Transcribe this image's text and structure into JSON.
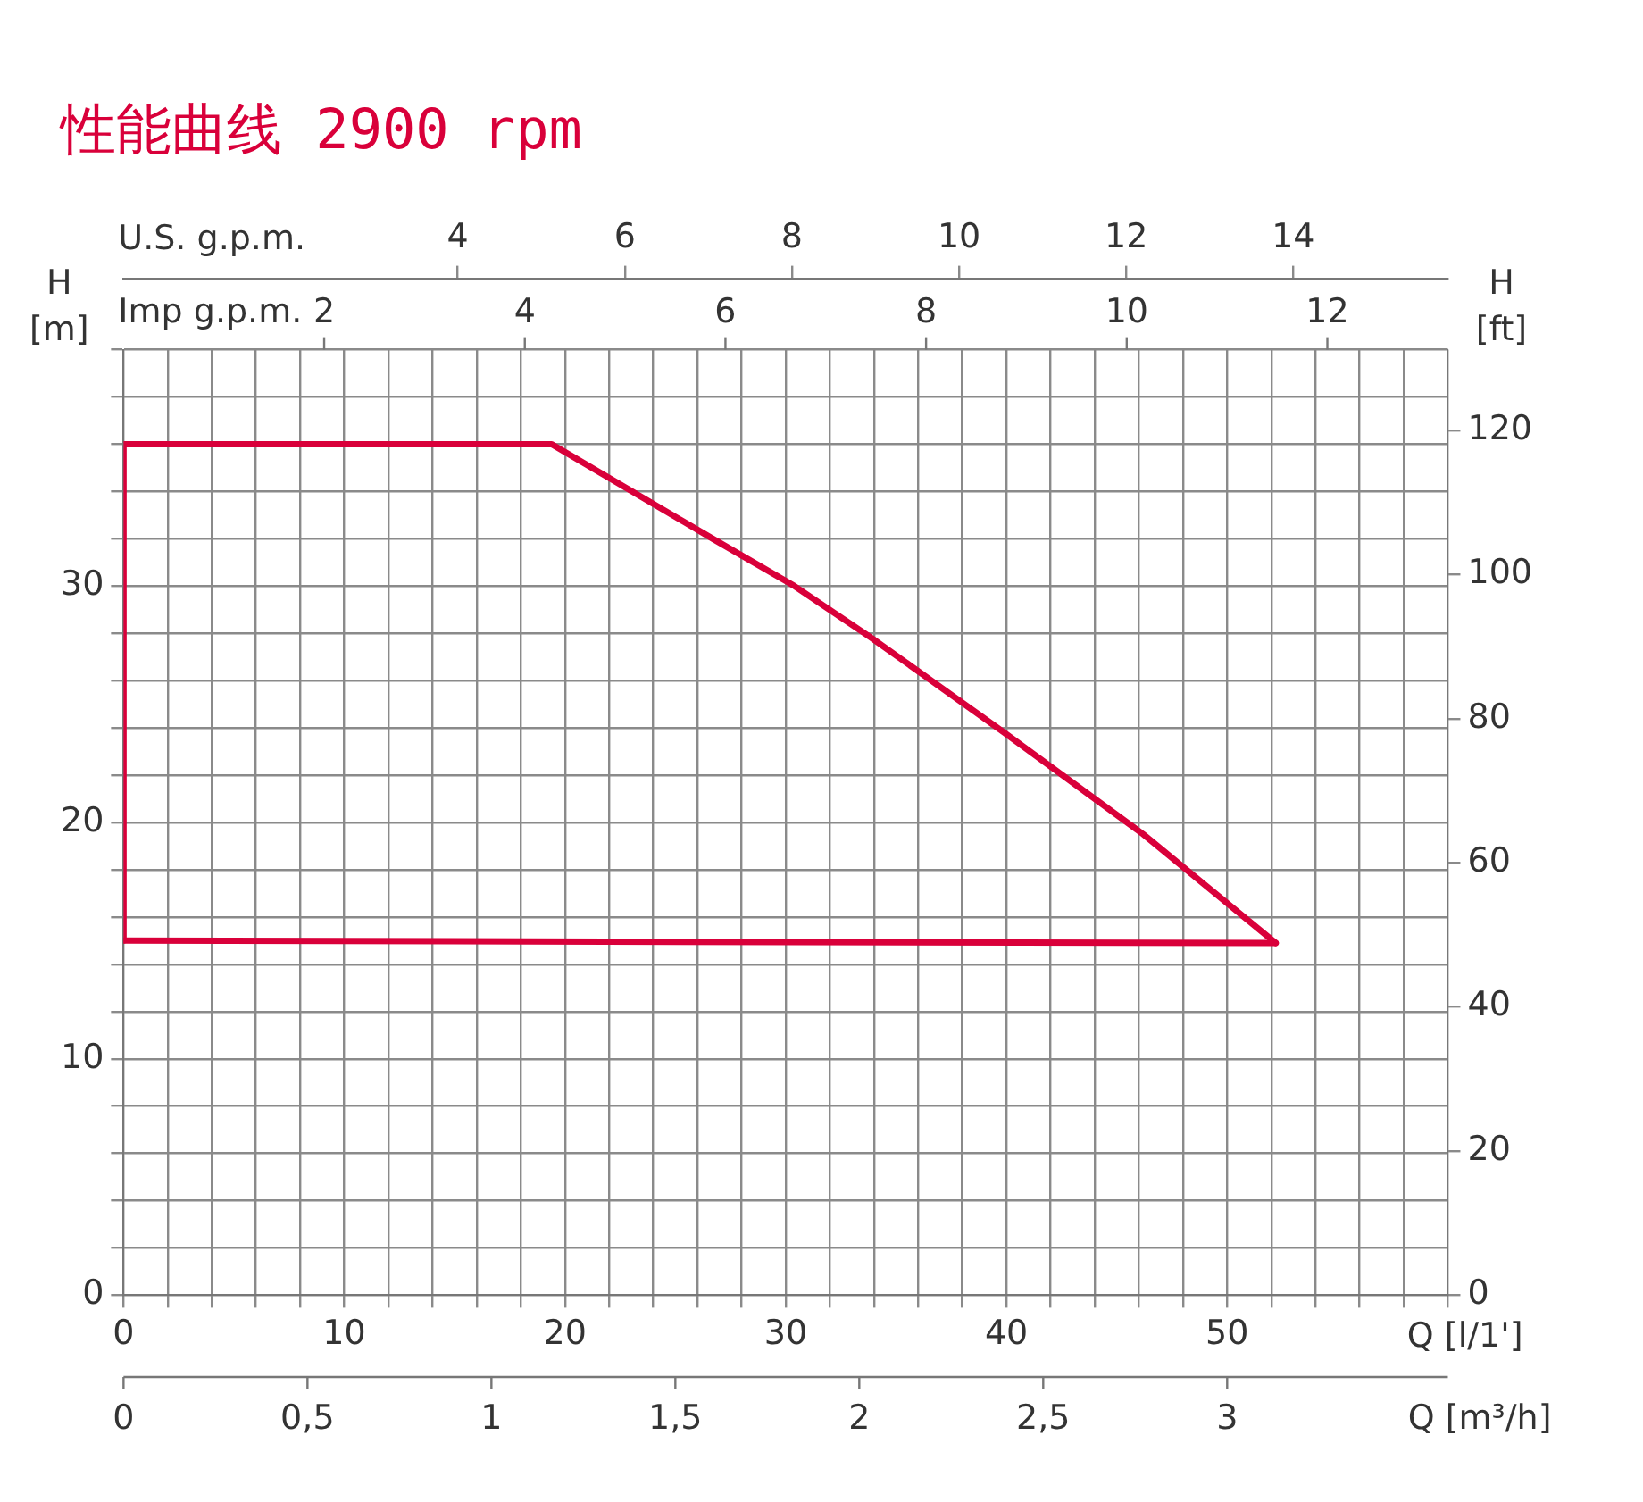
{
  "chart_data": {
    "type": "line",
    "title": "性能曲线 2900 rpm",
    "xlabel": "Q [l/1']",
    "ylabel": "H [m]",
    "y2label": "H [ft]",
    "x2label": "U.S. g.p.m.",
    "xlim": [
      0,
      60
    ],
    "xticks": [
      0,
      {
        "value": 2,
        "label": null
      },
      {
        "value": 4,
        "label": null
      },
      {
        "value": 6,
        "label": null
      },
      {
        "value": 8,
        "label": null
      },
      10,
      {
        "value": 12,
        "label": null
      },
      {
        "value": 14,
        "label": null
      },
      {
        "value": 16,
        "label": null
      },
      {
        "value": 18,
        "label": null
      },
      20,
      {
        "value": 22,
        "label": null
      },
      {
        "value": 24,
        "label": null
      },
      {
        "value": 26,
        "label": null
      },
      {
        "value": 28,
        "label": null
      },
      30,
      {
        "value": 32,
        "label": null
      },
      {
        "value": 34,
        "label": null
      },
      {
        "value": 36,
        "label": null
      },
      {
        "value": 38,
        "label": null
      },
      40,
      {
        "value": 42,
        "label": null
      },
      {
        "value": 44,
        "label": null
      },
      {
        "value": 46,
        "label": null
      },
      {
        "value": 48,
        "label": null
      },
      50,
      {
        "value": 52,
        "label": null
      },
      {
        "value": 54,
        "label": null
      },
      {
        "value": 56,
        "label": null
      },
      {
        "value": 58,
        "label": null
      },
      {
        "value": 60,
        "label": null
      }
    ],
    "ylim": [
      0,
      40
    ],
    "yticks": [
      0,
      {
        "value": 2,
        "label": null
      },
      {
        "value": 4,
        "label": null
      },
      {
        "value": 6,
        "label": null
      },
      {
        "value": 8,
        "label": null
      },
      10,
      {
        "value": 12,
        "label": null
      },
      {
        "value": 14,
        "label": null
      },
      {
        "value": 16,
        "label": null
      },
      {
        "value": 18,
        "label": null
      },
      20,
      {
        "value": 22,
        "label": null
      },
      {
        "value": 24,
        "label": null
      },
      {
        "value": 26,
        "label": null
      },
      {
        "value": 28,
        "label": null
      },
      30,
      {
        "value": 32,
        "label": null
      },
      {
        "value": 34,
        "label": null
      },
      {
        "value": 36,
        "label": null
      },
      {
        "value": 38,
        "label": null
      },
      {
        "value": 40,
        "label": null
      }
    ],
    "y2lim": [
      0,
      131.2
    ],
    "y2ticks": [
      0,
      20,
      40,
      60,
      80,
      100,
      120
    ],
    "x2lim": [
      0,
      15.85
    ],
    "x2ticks": [
      4,
      6,
      8,
      10,
      12,
      14
    ],
    "annotations": [
      "Imp g.p.m.",
      "2",
      "4",
      "6",
      "8",
      "10",
      "12",
      "Q [m³/h]",
      "0",
      "0,5",
      "1",
      "1,5",
      "2",
      "2,5",
      "3"
    ],
    "grid": true,
    "legend": false,
    "marker": "none",
    "line_style": "solid",
    "series": [
      {
        "color": "#d9003a",
        "x": [
          0,
          0,
          19.4,
          26.7,
          30.4,
          33.9,
          39.9,
          46.2,
          52.2
        ],
        "values": [
          15.0,
          36.0,
          36.0,
          32.0,
          30.0,
          27.8,
          23.8,
          19.5,
          14.9
        ]
      },
      {
        "color": "#d9003a",
        "x": [
          0,
          52.2
        ],
        "values": [
          15.0,
          14.9
        ]
      }
    ]
  }
}
